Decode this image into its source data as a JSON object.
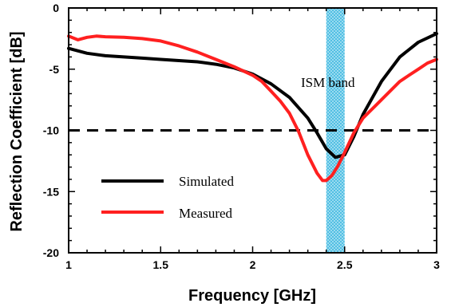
{
  "chart_data": {
    "type": "line",
    "title": "",
    "xlabel": "Frequency [GHz]",
    "ylabel": "Reflection Coefficient [dB]",
    "xlim": [
      1,
      3
    ],
    "ylim": [
      -20,
      0
    ],
    "xticks": [
      1,
      1.5,
      2,
      2.5,
      3
    ],
    "xtick_labels": [
      "1",
      "1.5",
      "2",
      "2.5",
      "3"
    ],
    "yticks": [
      0,
      -5,
      -10,
      -15,
      -20
    ],
    "ytick_labels": [
      "0",
      "-5",
      "-10",
      "-15",
      "-20"
    ],
    "grid": false,
    "legend_position": "bottom-left",
    "series": [
      {
        "name": "Simulated",
        "color": "#000000",
        "x": [
          1.0,
          1.1,
          1.2,
          1.3,
          1.4,
          1.5,
          1.6,
          1.7,
          1.8,
          1.9,
          2.0,
          2.1,
          2.2,
          2.3,
          2.35,
          2.4,
          2.45,
          2.5,
          2.55,
          2.6,
          2.7,
          2.8,
          2.9,
          3.0
        ],
        "y": [
          -3.3,
          -3.7,
          -3.9,
          -4.0,
          -4.1,
          -4.2,
          -4.3,
          -4.4,
          -4.6,
          -4.9,
          -5.4,
          -6.2,
          -7.3,
          -9.0,
          -10.2,
          -11.5,
          -12.2,
          -12.0,
          -10.5,
          -8.7,
          -6.0,
          -4.0,
          -2.8,
          -2.1
        ]
      },
      {
        "name": "Measured",
        "color": "#ff2020",
        "x": [
          1.0,
          1.05,
          1.1,
          1.15,
          1.2,
          1.3,
          1.4,
          1.5,
          1.6,
          1.7,
          1.8,
          1.9,
          2.0,
          2.05,
          2.1,
          2.15,
          2.2,
          2.25,
          2.3,
          2.35,
          2.38,
          2.4,
          2.43,
          2.46,
          2.5,
          2.55,
          2.6,
          2.7,
          2.8,
          2.85,
          2.9,
          2.95,
          3.0
        ],
        "y": [
          -2.3,
          -2.6,
          -2.4,
          -2.3,
          -2.35,
          -2.4,
          -2.5,
          -2.7,
          -3.1,
          -3.6,
          -4.2,
          -4.8,
          -5.5,
          -6.0,
          -6.8,
          -7.6,
          -8.6,
          -10.1,
          -12.0,
          -13.5,
          -14.1,
          -14.1,
          -13.7,
          -13.0,
          -11.8,
          -10.2,
          -9.0,
          -7.5,
          -6.0,
          -5.5,
          -5.0,
          -4.5,
          -4.2
        ]
      }
    ],
    "reference_line": {
      "y": -10,
      "style": "dashed",
      "color": "#000000"
    },
    "shaded_band": {
      "x_start": 2.4,
      "x_end": 2.5,
      "label": "ISM band",
      "color": "#7ad0ec"
    },
    "annotations": [
      {
        "text": "ISM band"
      }
    ]
  }
}
